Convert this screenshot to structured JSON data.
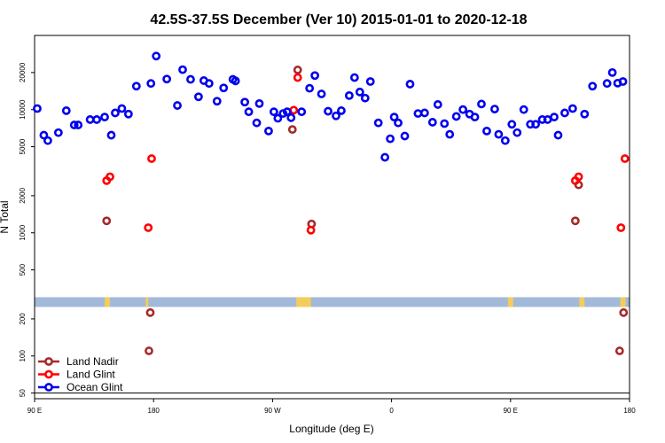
{
  "chart_data": {
    "type": "scatter",
    "title": "42.5S-37.5S December (Ver 10)   2015-01-01 to 2020-12-18",
    "xlabel": "Longitude (deg E)",
    "ylabel": "N Total",
    "y_scale": "log",
    "xlim": [
      90,
      540
    ],
    "ylim": [
      45,
      40000
    ],
    "x_ticks": [
      {
        "value": 90,
        "label": "90 E"
      },
      {
        "value": 180,
        "label": "180"
      },
      {
        "value": 270,
        "label": "90 W"
      },
      {
        "value": 360,
        "label": "0"
      },
      {
        "value": 450,
        "label": "90 E"
      },
      {
        "value": 540,
        "label": "180"
      }
    ],
    "y_ticks": [
      {
        "value": 50,
        "label": "50"
      },
      {
        "value": 100,
        "label": "100"
      },
      {
        "value": 200,
        "label": "200"
      },
      {
        "value": 500,
        "label": "500"
      },
      {
        "value": 1000,
        "label": "1000"
      },
      {
        "value": 2000,
        "label": "2000"
      },
      {
        "value": 5000,
        "label": "5000"
      },
      {
        "value": 10000,
        "label": "10000"
      },
      {
        "value": 20000,
        "label": "20000"
      }
    ],
    "grid": false,
    "legend_position": "bottom-left",
    "reference_line_y": 50,
    "surface_band": {
      "y_range": [
        250,
        300
      ],
      "ocean_color": "#a3b9d9",
      "land_color": "#f3cd5c",
      "land_segments": [
        [
          143,
          147
        ],
        [
          174,
          176
        ],
        [
          288,
          299
        ],
        [
          448,
          452
        ],
        [
          502,
          506
        ],
        [
          533,
          537
        ]
      ]
    },
    "series": [
      {
        "name": "Land Nadir",
        "color": "#a52a2a",
        "points": [
          [
            144.5,
            1250
          ],
          [
            176.5,
            110
          ],
          [
            177.5,
            225
          ],
          [
            285,
            6900
          ],
          [
            289,
            21000
          ],
          [
            299.5,
            1180
          ],
          [
            499,
            1250
          ],
          [
            501.5,
            2450
          ],
          [
            532.5,
            110
          ],
          [
            535.5,
            225
          ]
        ]
      },
      {
        "name": "Land Glint",
        "color": "#ff0000",
        "points": [
          [
            144.5,
            2650
          ],
          [
            147,
            2850
          ],
          [
            176,
            1100
          ],
          [
            178.5,
            4000
          ],
          [
            286,
            9900
          ],
          [
            289,
            18200
          ],
          [
            299,
            1050
          ],
          [
            499,
            2650
          ],
          [
            501.5,
            2850
          ],
          [
            533.5,
            1100
          ],
          [
            536.5,
            4000
          ]
        ]
      },
      {
        "name": "Ocean Glint",
        "color": "#0000ee",
        "points": [
          [
            92,
            10200
          ],
          [
            97,
            6200
          ],
          [
            100,
            5600
          ],
          [
            108,
            6500
          ],
          [
            114,
            9800
          ],
          [
            120,
            7500
          ],
          [
            123,
            7500
          ],
          [
            132,
            8300
          ],
          [
            137,
            8300
          ],
          [
            143,
            8700
          ],
          [
            148,
            6200
          ],
          [
            151,
            9400
          ],
          [
            156,
            10200
          ],
          [
            161,
            9200
          ],
          [
            167,
            15500
          ],
          [
            178,
            16300
          ],
          [
            182,
            27200
          ],
          [
            190,
            17700
          ],
          [
            198,
            10800
          ],
          [
            202,
            21100
          ],
          [
            208,
            17600
          ],
          [
            214,
            12700
          ],
          [
            218,
            17200
          ],
          [
            222,
            16300
          ],
          [
            228,
            11700
          ],
          [
            233,
            15000
          ],
          [
            240,
            17600
          ],
          [
            242,
            17100
          ],
          [
            249,
            11500
          ],
          [
            252,
            9600
          ],
          [
            258,
            7800
          ],
          [
            260,
            11200
          ],
          [
            267,
            6700
          ],
          [
            271,
            9600
          ],
          [
            274,
            8500
          ],
          [
            278,
            9300
          ],
          [
            281,
            9600
          ],
          [
            284,
            8600
          ],
          [
            292,
            9600
          ],
          [
            298,
            14900
          ],
          [
            302,
            18900
          ],
          [
            307,
            13400
          ],
          [
            312,
            9700
          ],
          [
            318,
            8900
          ],
          [
            322,
            9800
          ],
          [
            328,
            13000
          ],
          [
            332,
            18200
          ],
          [
            336,
            13900
          ],
          [
            340,
            12400
          ],
          [
            344,
            16900
          ],
          [
            350,
            7800
          ],
          [
            355,
            4100
          ],
          [
            359,
            5800
          ],
          [
            362,
            8700
          ],
          [
            365,
            7800
          ],
          [
            370,
            6100
          ],
          [
            374,
            16100
          ],
          [
            380,
            9300
          ],
          [
            385,
            9400
          ],
          [
            391,
            7900
          ],
          [
            395,
            11000
          ],
          [
            400,
            7700
          ],
          [
            404,
            6300
          ],
          [
            409,
            8800
          ],
          [
            414,
            10000
          ],
          [
            419,
            9200
          ],
          [
            423,
            8700
          ],
          [
            428,
            11100
          ],
          [
            432,
            6700
          ],
          [
            438,
            10100
          ],
          [
            441,
            6300
          ],
          [
            446,
            5600
          ],
          [
            451,
            7600
          ],
          [
            455,
            6500
          ],
          [
            460,
            10000
          ],
          [
            465,
            7600
          ],
          [
            469,
            7600
          ],
          [
            474,
            8300
          ],
          [
            478,
            8300
          ],
          [
            483,
            8700
          ],
          [
            486,
            6200
          ],
          [
            491,
            9400
          ],
          [
            497,
            10200
          ],
          [
            506,
            9200
          ],
          [
            512,
            15500
          ],
          [
            523,
            16300
          ],
          [
            527,
            20000
          ],
          [
            531,
            16400
          ],
          [
            535,
            16900
          ]
        ]
      }
    ]
  }
}
